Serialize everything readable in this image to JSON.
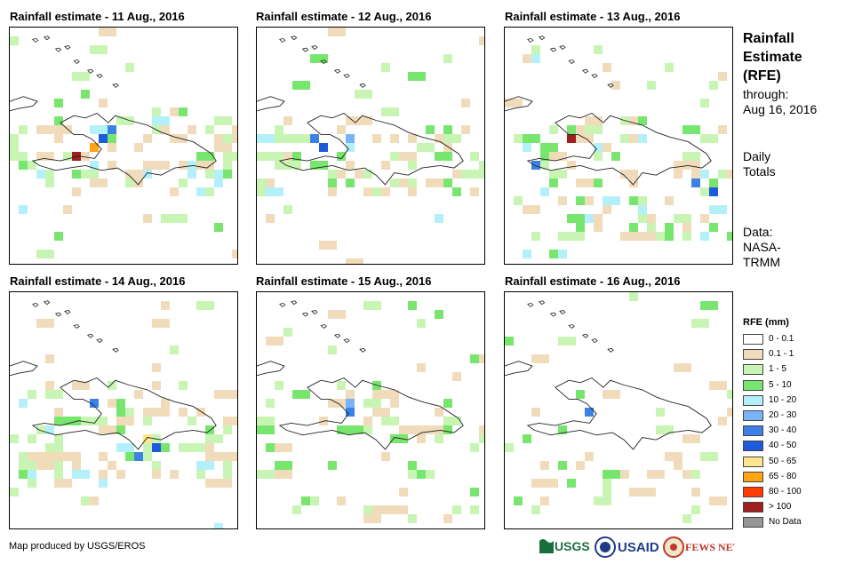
{
  "panels": [
    {
      "title": "Rainfall estimate - 11 Aug., 2016"
    },
    {
      "title": "Rainfall estimate - 12 Aug., 2016"
    },
    {
      "title": "Rainfall estimate - 13 Aug., 2016"
    },
    {
      "title": "Rainfall estimate - 14 Aug., 2016"
    },
    {
      "title": "Rainfall estimate - 15 Aug., 2016"
    },
    {
      "title": "Rainfall estimate - 16 Aug., 2016"
    }
  ],
  "sidebar": {
    "title_lines": [
      "Rainfall",
      "Estimate",
      "(RFE)"
    ],
    "through_label": "through:",
    "through_date": "Aug 16, 2016",
    "totals_lines": [
      "Daily",
      "Totals"
    ],
    "data_lines": [
      "Data:",
      "NASA-",
      "TRMM"
    ]
  },
  "legend": {
    "title": "RFE (mm)",
    "items": [
      {
        "label": "0 - 0.1",
        "color": "#ffffff"
      },
      {
        "label": "0.1 - 1",
        "color": "#f0dcba"
      },
      {
        "label": "1 - 5",
        "color": "#c8f5b4"
      },
      {
        "label": "5 - 10",
        "color": "#78e66e"
      },
      {
        "label": "10 - 20",
        "color": "#b4f0fa"
      },
      {
        "label": "20 - 30",
        "color": "#78b4f5"
      },
      {
        "label": "30 - 40",
        "color": "#3c82e6"
      },
      {
        "label": "40 - 50",
        "color": "#1e5adc"
      },
      {
        "label": "50 - 65",
        "color": "#ffe68c"
      },
      {
        "label": "65 - 80",
        "color": "#ffa514"
      },
      {
        "label": "80 - 100",
        "color": "#ff3c00"
      },
      {
        "label": "> 100",
        "color": "#a01e1e"
      },
      {
        "label": "No Data",
        "color": "#969696"
      }
    ]
  },
  "footer": {
    "credit": "Map produced by USGS/EROS",
    "logos": [
      "USGS",
      "USAID",
      "FEWS NET"
    ]
  }
}
